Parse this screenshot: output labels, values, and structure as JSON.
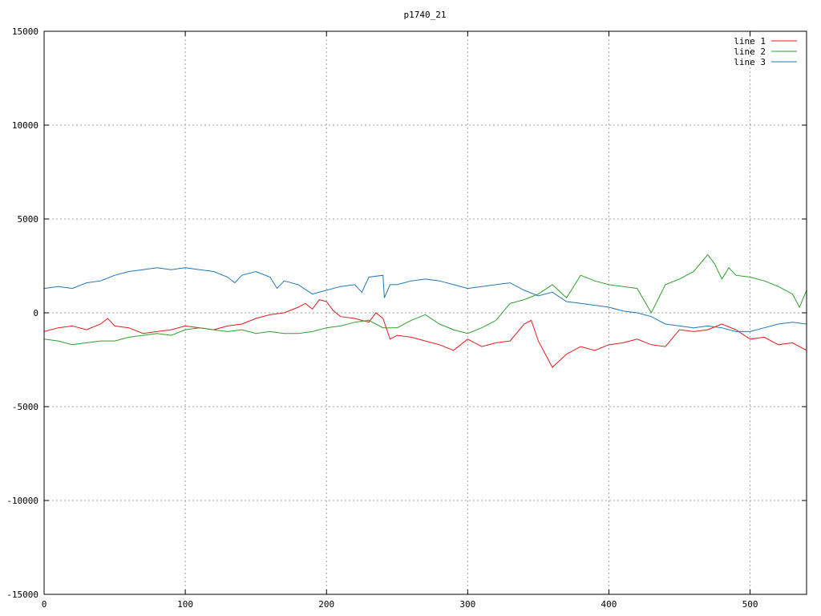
{
  "chart_data": {
    "type": "line",
    "title": "p1740_21",
    "xlabel": "",
    "ylabel": "",
    "xlim": [
      0,
      540
    ],
    "ylim": [
      -15000,
      15000
    ],
    "xticks": [
      0,
      100,
      200,
      300,
      400,
      500
    ],
    "yticks": [
      -15000,
      -10000,
      -5000,
      0,
      5000,
      10000,
      15000
    ],
    "grid": true,
    "legend_position": "top-right",
    "series": [
      {
        "name": "line 1",
        "color": "#e41a1c",
        "x": [
          0,
          10,
          20,
          30,
          40,
          45,
          50,
          60,
          70,
          80,
          90,
          100,
          110,
          120,
          130,
          140,
          150,
          160,
          170,
          180,
          185,
          190,
          195,
          200,
          205,
          210,
          220,
          230,
          235,
          240,
          245,
          250,
          260,
          270,
          280,
          290,
          300,
          310,
          320,
          330,
          340,
          345,
          350,
          355,
          360,
          370,
          380,
          390,
          400,
          410,
          420,
          430,
          440,
          450,
          460,
          470,
          480,
          490,
          500,
          510,
          520,
          530,
          540
        ],
        "y": [
          -1000,
          -800,
          -700,
          -900,
          -600,
          -300,
          -700,
          -800,
          -1100,
          -1000,
          -900,
          -700,
          -800,
          -900,
          -700,
          -600,
          -300,
          -100,
          0,
          300,
          500,
          200,
          700,
          600,
          100,
          -200,
          -300,
          -500,
          0,
          -300,
          -1400,
          -1200,
          -1300,
          -1500,
          -1700,
          -2000,
          -1400,
          -1800,
          -1600,
          -1500,
          -600,
          -400,
          -1500,
          -2200,
          -2900,
          -2200,
          -1800,
          -2000,
          -1700,
          -1600,
          -1400,
          -1700,
          -1800,
          -900,
          -1000,
          -900,
          -600,
          -900,
          -1400,
          -1300,
          -1700,
          -1600,
          -2000
        ]
      },
      {
        "name": "line 2",
        "color": "#2ca02c",
        "x": [
          0,
          10,
          20,
          30,
          40,
          50,
          60,
          70,
          80,
          90,
          100,
          110,
          120,
          130,
          140,
          150,
          160,
          170,
          180,
          190,
          200,
          210,
          220,
          230,
          240,
          250,
          260,
          270,
          280,
          290,
          300,
          310,
          320,
          330,
          340,
          350,
          360,
          370,
          380,
          390,
          400,
          410,
          420,
          430,
          440,
          450,
          460,
          470,
          475,
          480,
          485,
          490,
          500,
          510,
          520,
          530,
          535,
          540
        ],
        "y": [
          -1400,
          -1500,
          -1700,
          -1600,
          -1500,
          -1500,
          -1300,
          -1200,
          -1100,
          -1200,
          -900,
          -800,
          -900,
          -1000,
          -900,
          -1100,
          -1000,
          -1100,
          -1100,
          -1000,
          -800,
          -700,
          -500,
          -400,
          -800,
          -800,
          -400,
          -100,
          -600,
          -900,
          -1100,
          -800,
          -400,
          500,
          700,
          1000,
          1500,
          800,
          2000,
          1700,
          1500,
          1400,
          1300,
          0,
          1500,
          1800,
          2200,
          3100,
          2600,
          1800,
          2400,
          2000,
          1900,
          1700,
          1400,
          1000,
          300,
          1200
        ]
      },
      {
        "name": "line 3",
        "color": "#1f77b4",
        "x": [
          0,
          10,
          20,
          30,
          40,
          50,
          60,
          70,
          80,
          90,
          100,
          110,
          120,
          130,
          135,
          140,
          150,
          160,
          165,
          170,
          180,
          190,
          200,
          210,
          220,
          225,
          230,
          240,
          241,
          245,
          250,
          260,
          270,
          280,
          290,
          300,
          310,
          320,
          330,
          340,
          350,
          360,
          370,
          380,
          390,
          400,
          410,
          420,
          430,
          440,
          450,
          460,
          470,
          480,
          490,
          500,
          510,
          520,
          530,
          540
        ],
        "y": [
          1300,
          1400,
          1300,
          1600,
          1700,
          2000,
          2200,
          2300,
          2400,
          2300,
          2400,
          2300,
          2200,
          1900,
          1600,
          2000,
          2200,
          1900,
          1300,
          1700,
          1500,
          1000,
          1200,
          1400,
          1500,
          1100,
          1900,
          2000,
          800,
          1500,
          1500,
          1700,
          1800,
          1700,
          1500,
          1300,
          1400,
          1500,
          1600,
          1200,
          900,
          1100,
          600,
          500,
          400,
          300,
          100,
          0,
          -200,
          -600,
          -700,
          -800,
          -700,
          -800,
          -1000,
          -1000,
          -800,
          -600,
          -500,
          -600
        ]
      }
    ]
  }
}
